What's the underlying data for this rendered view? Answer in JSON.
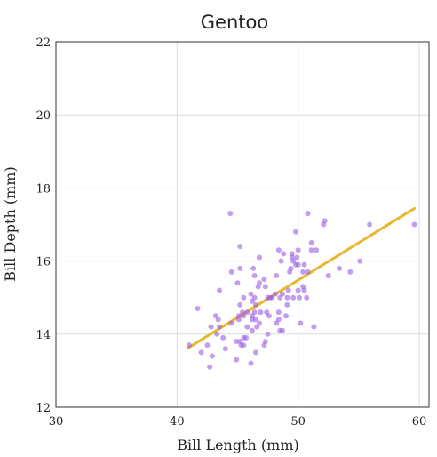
{
  "chart_data": {
    "type": "scatter",
    "title": "Gentoo",
    "xlabel": "Bill Length (mm)",
    "ylabel": "Bill Depth (mm)",
    "xlim": [
      30,
      60
    ],
    "ylim": [
      12,
      22
    ],
    "xticks": [
      30,
      40,
      50,
      60
    ],
    "yticks": [
      12,
      14,
      16,
      18,
      20,
      22
    ],
    "grid": true,
    "legend": "none",
    "point_color": "#9b5de5",
    "line_color": "#e8b631",
    "points": [
      [
        41.0,
        13.7
      ],
      [
        41.7,
        14.7
      ],
      [
        42.0,
        13.5
      ],
      [
        42.5,
        13.7
      ],
      [
        42.7,
        13.1
      ],
      [
        42.8,
        14.2
      ],
      [
        42.9,
        13.4
      ],
      [
        43.2,
        14.5
      ],
      [
        43.3,
        14.0
      ],
      [
        43.4,
        14.4
      ],
      [
        43.5,
        15.2
      ],
      [
        43.5,
        14.2
      ],
      [
        43.8,
        13.9
      ],
      [
        44.0,
        13.6
      ],
      [
        44.4,
        17.3
      ],
      [
        44.5,
        14.3
      ],
      [
        44.5,
        15.7
      ],
      [
        44.9,
        13.3
      ],
      [
        44.9,
        13.8
      ],
      [
        45.0,
        15.4
      ],
      [
        45.1,
        14.5
      ],
      [
        45.1,
        14.4
      ],
      [
        45.2,
        13.8
      ],
      [
        45.2,
        14.8
      ],
      [
        45.2,
        15.8
      ],
      [
        45.2,
        16.4
      ],
      [
        45.3,
        13.7
      ],
      [
        45.4,
        14.6
      ],
      [
        45.5,
        13.7
      ],
      [
        45.5,
        13.9
      ],
      [
        45.5,
        14.5
      ],
      [
        45.5,
        15.0
      ],
      [
        45.7,
        13.9
      ],
      [
        45.8,
        14.2
      ],
      [
        45.8,
        14.6
      ],
      [
        46.1,
        13.2
      ],
      [
        46.1,
        15.1
      ],
      [
        46.2,
        14.1
      ],
      [
        46.2,
        14.4
      ],
      [
        46.2,
        14.5
      ],
      [
        46.2,
        14.9
      ],
      [
        46.3,
        15.8
      ],
      [
        46.4,
        14.6
      ],
      [
        46.4,
        15.0
      ],
      [
        46.4,
        15.6
      ],
      [
        46.5,
        13.5
      ],
      [
        46.5,
        14.4
      ],
      [
        46.5,
        14.8
      ],
      [
        46.6,
        14.2
      ],
      [
        46.7,
        15.3
      ],
      [
        46.8,
        14.3
      ],
      [
        46.8,
        15.4
      ],
      [
        46.8,
        16.1
      ],
      [
        46.9,
        14.6
      ],
      [
        47.2,
        13.7
      ],
      [
        47.2,
        15.5
      ],
      [
        47.3,
        13.8
      ],
      [
        47.3,
        15.3
      ],
      [
        47.4,
        14.6
      ],
      [
        47.5,
        14.0
      ],
      [
        47.5,
        15.0
      ],
      [
        47.6,
        14.5
      ],
      [
        47.7,
        15.0
      ],
      [
        47.8,
        15.0
      ],
      [
        48.1,
        15.1
      ],
      [
        48.2,
        14.3
      ],
      [
        48.2,
        15.6
      ],
      [
        48.4,
        14.4
      ],
      [
        48.4,
        14.6
      ],
      [
        48.4,
        16.3
      ],
      [
        48.5,
        14.1
      ],
      [
        48.5,
        15.0
      ],
      [
        48.6,
        16.0
      ],
      [
        48.7,
        14.1
      ],
      [
        48.7,
        15.1
      ],
      [
        48.8,
        16.2
      ],
      [
        49.0,
        14.5
      ],
      [
        49.1,
        14.8
      ],
      [
        49.1,
        15.0
      ],
      [
        49.2,
        15.2
      ],
      [
        49.3,
        15.7
      ],
      [
        49.4,
        15.8
      ],
      [
        49.5,
        16.1
      ],
      [
        49.5,
        16.2
      ],
      [
        49.6,
        15.0
      ],
      [
        49.6,
        16.0
      ],
      [
        49.8,
        15.9
      ],
      [
        49.8,
        16.8
      ],
      [
        49.9,
        16.1
      ],
      [
        50.0,
        15.2
      ],
      [
        50.0,
        15.9
      ],
      [
        50.0,
        16.3
      ],
      [
        50.1,
        15.0
      ],
      [
        50.2,
        14.3
      ],
      [
        50.4,
        15.3
      ],
      [
        50.4,
        15.7
      ],
      [
        50.5,
        15.2
      ],
      [
        50.5,
        15.9
      ],
      [
        50.7,
        15.0
      ],
      [
        50.8,
        15.7
      ],
      [
        50.8,
        17.3
      ],
      [
        51.1,
        16.3
      ],
      [
        51.1,
        16.5
      ],
      [
        51.3,
        14.2
      ],
      [
        51.5,
        16.3
      ],
      [
        52.1,
        17.0
      ],
      [
        52.2,
        17.1
      ],
      [
        52.5,
        15.6
      ],
      [
        53.4,
        15.8
      ],
      [
        54.3,
        15.7
      ],
      [
        55.1,
        16.0
      ],
      [
        55.9,
        17.0
      ],
      [
        59.6,
        17.0
      ]
    ],
    "regression": {
      "x": [
        40.9,
        59.6
      ],
      "y": [
        13.62,
        17.44
      ]
    }
  }
}
